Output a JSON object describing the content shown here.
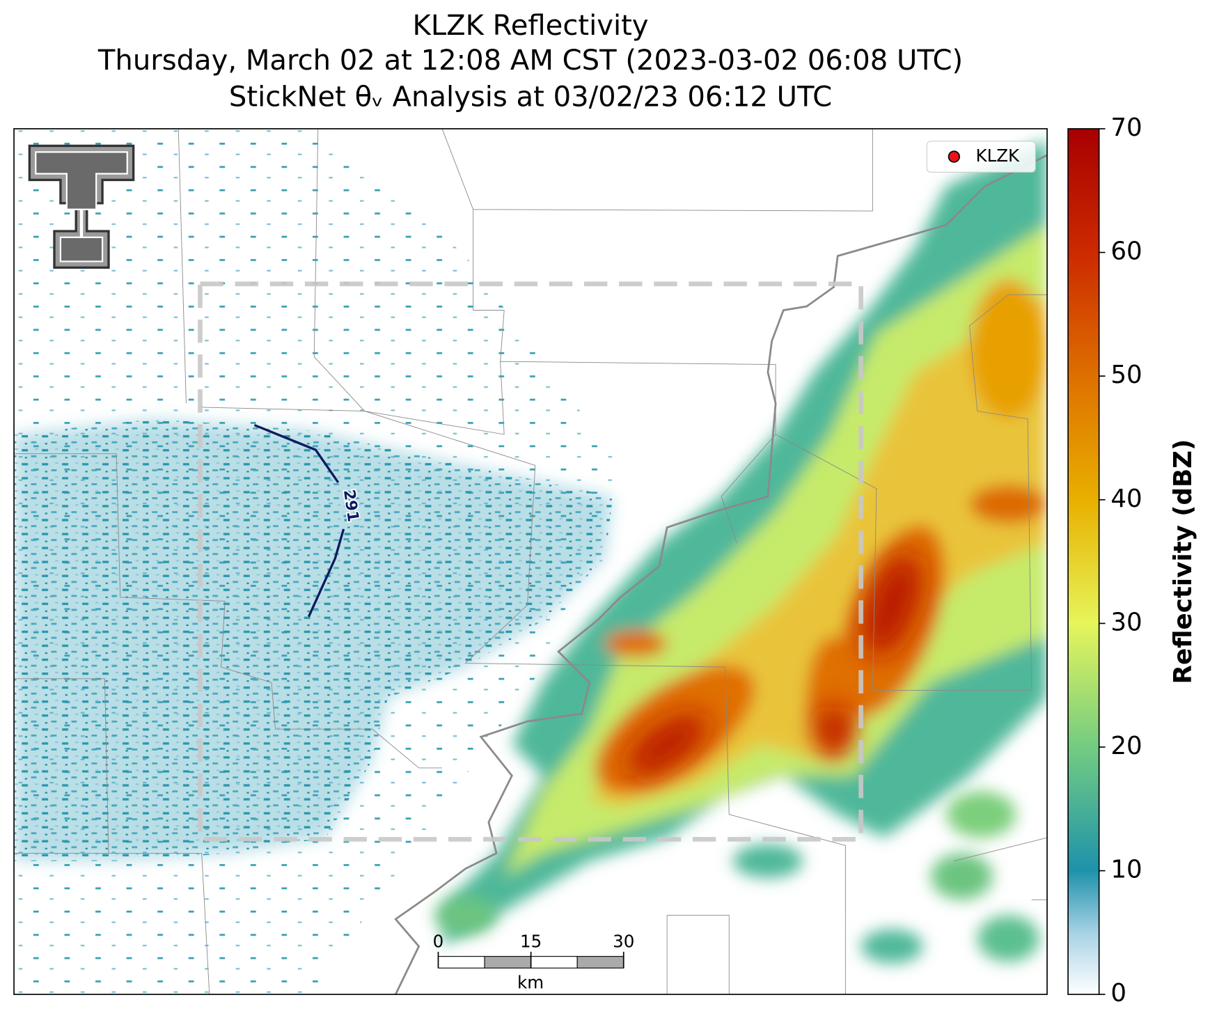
{
  "title": {
    "lines": [
      "KLZK Reflectivity",
      "Thursday, March 02 at 12:08 AM CST (2023-03-02 06:08 UTC)",
      "StickNet θᵥ Analysis at 03/02/23 06:12 UTC"
    ]
  },
  "legend": {
    "label": "KLZK"
  },
  "contour": {
    "label": "291"
  },
  "scale_bar": {
    "ticks": [
      0,
      15,
      30
    ],
    "unit": "km"
  },
  "colorbar": {
    "label": "Reflectivity (dBZ)",
    "lim": [
      0,
      70
    ],
    "ticks": [
      0,
      10,
      20,
      30,
      40,
      50,
      60,
      70
    ]
  }
}
